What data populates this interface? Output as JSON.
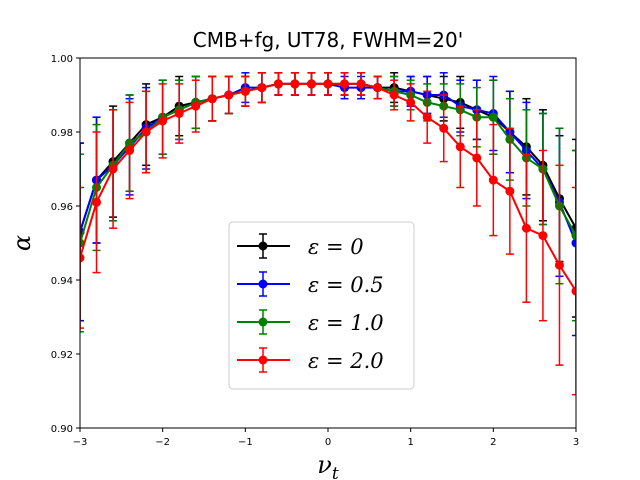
{
  "chart_data": {
    "type": "line",
    "title": "CMB+fg, UT78, FWHM=20'",
    "xlabel": "ν_t",
    "xlabel_main": "ν",
    "xlabel_sub": "t",
    "ylabel": "α",
    "xlim": [
      -3,
      3
    ],
    "ylim": [
      0.9,
      1.0
    ],
    "x_ticks": [
      -3,
      -2,
      -1,
      0,
      1,
      2,
      3
    ],
    "x_tick_labels": [
      "−3",
      "−2",
      "−1",
      "0",
      "1",
      "2",
      "3"
    ],
    "y_ticks": [
      0.9,
      0.92,
      0.94,
      0.96,
      0.98,
      1.0
    ],
    "y_tick_labels": [
      "0.90",
      "0.92",
      "0.94",
      "0.96",
      "0.98",
      "1.00"
    ],
    "legend_position": "lower-center",
    "x": [
      -3.0,
      -2.8,
      -2.6,
      -2.4,
      -2.2,
      -2.0,
      -1.8,
      -1.6,
      -1.4,
      -1.2,
      -1.0,
      -0.8,
      -0.6,
      -0.4,
      -0.2,
      0.0,
      0.2,
      0.4,
      0.6,
      0.8,
      1.0,
      1.2,
      1.4,
      1.6,
      1.8,
      2.0,
      2.2,
      2.4,
      2.6,
      2.8,
      3.0
    ],
    "series": [
      {
        "name": "ε = 0",
        "legend_label": "ε = 0",
        "color": "#000000",
        "values": [
          0.953,
          0.967,
          0.972,
          0.977,
          0.982,
          0.984,
          0.987,
          0.988,
          0.989,
          0.99,
          0.991,
          0.992,
          0.993,
          0.993,
          0.993,
          0.993,
          0.993,
          0.993,
          0.992,
          0.992,
          0.991,
          0.99,
          0.989,
          0.988,
          0.986,
          0.984,
          0.98,
          0.976,
          0.971,
          0.962,
          0.954
        ],
        "errors": [
          0.024,
          0.017,
          0.015,
          0.013,
          0.011,
          0.01,
          0.008,
          0.007,
          0.006,
          0.005,
          0.004,
          0.004,
          0.003,
          0.003,
          0.003,
          0.003,
          0.003,
          0.003,
          0.003,
          0.004,
          0.004,
          0.005,
          0.006,
          0.007,
          0.008,
          0.01,
          0.011,
          0.013,
          0.015,
          0.017,
          0.024
        ]
      },
      {
        "name": "ε = 0.5",
        "legend_label": "ε = 0.5",
        "color": "#0000ff",
        "values": [
          0.953,
          0.967,
          0.971,
          0.976,
          0.981,
          0.984,
          0.986,
          0.988,
          0.989,
          0.99,
          0.992,
          0.992,
          0.993,
          0.993,
          0.993,
          0.993,
          0.992,
          0.992,
          0.992,
          0.991,
          0.991,
          0.99,
          0.99,
          0.987,
          0.986,
          0.985,
          0.98,
          0.975,
          0.97,
          0.961,
          0.95
        ],
        "errors": [
          0.024,
          0.017,
          0.015,
          0.013,
          0.011,
          0.01,
          0.008,
          0.007,
          0.006,
          0.005,
          0.004,
          0.004,
          0.003,
          0.003,
          0.003,
          0.003,
          0.003,
          0.003,
          0.003,
          0.004,
          0.004,
          0.005,
          0.006,
          0.007,
          0.008,
          0.01,
          0.011,
          0.013,
          0.015,
          0.02,
          0.025
        ]
      },
      {
        "name": "ε = 1.0",
        "legend_label": "ε = 1.0",
        "color": "#008000",
        "values": [
          0.95,
          0.965,
          0.971,
          0.977,
          0.98,
          0.984,
          0.986,
          0.988,
          0.989,
          0.99,
          0.991,
          0.992,
          0.993,
          0.993,
          0.993,
          0.993,
          0.993,
          0.993,
          0.992,
          0.991,
          0.99,
          0.988,
          0.987,
          0.986,
          0.984,
          0.984,
          0.978,
          0.973,
          0.97,
          0.96,
          0.952
        ],
        "errors": [
          0.024,
          0.017,
          0.015,
          0.013,
          0.011,
          0.01,
          0.008,
          0.007,
          0.006,
          0.005,
          0.004,
          0.004,
          0.003,
          0.003,
          0.003,
          0.003,
          0.003,
          0.003,
          0.003,
          0.004,
          0.004,
          0.005,
          0.006,
          0.007,
          0.008,
          0.01,
          0.011,
          0.013,
          0.015,
          0.021,
          0.023
        ]
      },
      {
        "name": "ε = 2.0",
        "legend_label": "ε = 2.0",
        "color": "#ff0000",
        "values": [
          0.946,
          0.961,
          0.97,
          0.975,
          0.98,
          0.983,
          0.985,
          0.987,
          0.989,
          0.99,
          0.991,
          0.992,
          0.993,
          0.993,
          0.993,
          0.993,
          0.993,
          0.993,
          0.992,
          0.99,
          0.988,
          0.984,
          0.981,
          0.976,
          0.973,
          0.967,
          0.964,
          0.954,
          0.952,
          0.944,
          0.937
        ],
        "errors": [
          0.019,
          0.019,
          0.016,
          0.013,
          0.011,
          0.01,
          0.008,
          0.007,
          0.006,
          0.005,
          0.004,
          0.004,
          0.003,
          0.003,
          0.003,
          0.003,
          0.003,
          0.003,
          0.003,
          0.004,
          0.005,
          0.007,
          0.009,
          0.011,
          0.013,
          0.015,
          0.017,
          0.02,
          0.023,
          0.027,
          0.028
        ]
      }
    ]
  }
}
